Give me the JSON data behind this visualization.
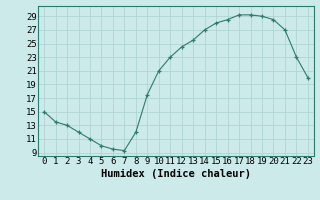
{
  "x": [
    0,
    1,
    2,
    3,
    4,
    5,
    6,
    7,
    8,
    9,
    10,
    11,
    12,
    13,
    14,
    15,
    16,
    17,
    18,
    19,
    20,
    21,
    22,
    23
  ],
  "y": [
    15,
    13.5,
    13,
    12,
    11,
    10,
    9.5,
    9.3,
    12,
    17.5,
    21,
    23,
    24.5,
    25.5,
    27,
    28,
    28.5,
    29.2,
    29.2,
    29,
    28.5,
    27,
    23,
    20
  ],
  "line_color": "#2d7a6e",
  "marker": "+",
  "marker_color": "#2d7a6e",
  "bg_color": "#cceaea",
  "grid_color": "#b0d4d4",
  "xlabel": "Humidex (Indice chaleur)",
  "xlabel_fontsize": 7.5,
  "ylabel_ticks": [
    9,
    11,
    13,
    15,
    17,
    19,
    21,
    23,
    25,
    27,
    29
  ],
  "xlim": [
    -0.5,
    23.5
  ],
  "ylim": [
    8.5,
    30.5
  ],
  "xtick_labels": [
    "0",
    "1",
    "2",
    "3",
    "4",
    "5",
    "6",
    "7",
    "8",
    "9",
    "10",
    "11",
    "12",
    "13",
    "14",
    "15",
    "16",
    "17",
    "18",
    "19",
    "20",
    "21",
    "22",
    "23"
  ],
  "tick_fontsize": 6.5,
  "figsize": [
    3.2,
    2.0
  ],
  "dpi": 100
}
